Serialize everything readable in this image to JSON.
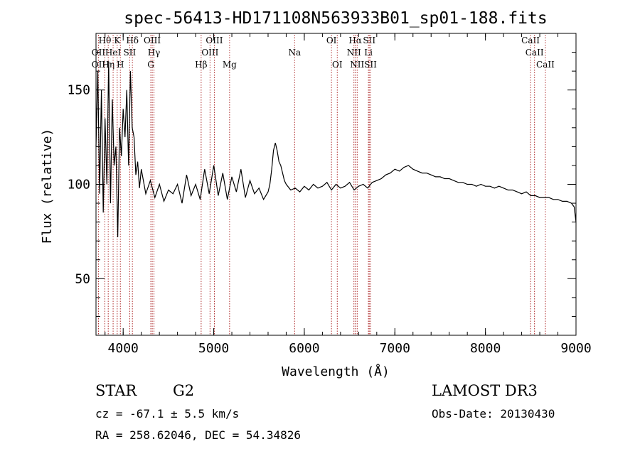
{
  "chart_data": {
    "type": "line",
    "title": "spec-56413-HD171108N563933B01_sp01-188.fits",
    "xlabel": "Wavelength (Å)",
    "ylabel": "Flux (relative)",
    "xlim": [
      3700,
      9000
    ],
    "ylim": [
      20,
      180
    ],
    "xticks": [
      4000,
      5000,
      6000,
      7000,
      8000,
      9000
    ],
    "yticks": [
      50,
      100,
      150
    ],
    "grid": false,
    "legend": "none",
    "line_color": "#000000",
    "marker_color": "#b03030",
    "spectrum": {
      "x": [
        3700,
        3720,
        3740,
        3760,
        3780,
        3800,
        3820,
        3840,
        3860,
        3880,
        3900,
        3920,
        3940,
        3960,
        3980,
        4000,
        4020,
        4040,
        4060,
        4080,
        4100,
        4120,
        4140,
        4160,
        4180,
        4200,
        4250,
        4300,
        4350,
        4400,
        4450,
        4500,
        4550,
        4600,
        4650,
        4700,
        4750,
        4800,
        4850,
        4900,
        4950,
        5000,
        5050,
        5100,
        5150,
        5200,
        5250,
        5300,
        5350,
        5400,
        5450,
        5500,
        5550,
        5600,
        5620,
        5640,
        5660,
        5680,
        5700,
        5720,
        5740,
        5760,
        5780,
        5800,
        5850,
        5900,
        5950,
        6000,
        6050,
        6100,
        6150,
        6200,
        6250,
        6300,
        6350,
        6400,
        6450,
        6500,
        6550,
        6600,
        6650,
        6700,
        6750,
        6800,
        6850,
        6900,
        6950,
        7000,
        7050,
        7100,
        7150,
        7200,
        7250,
        7300,
        7350,
        7400,
        7450,
        7500,
        7550,
        7600,
        7650,
        7700,
        7750,
        7800,
        7850,
        7900,
        7950,
        8000,
        8050,
        8100,
        8150,
        8200,
        8250,
        8300,
        8350,
        8400,
        8450,
        8500,
        8550,
        8600,
        8650,
        8700,
        8750,
        8800,
        8850,
        8900,
        8950,
        8980,
        9000
      ],
      "y": [
        120,
        160,
        95,
        150,
        85,
        135,
        100,
        165,
        90,
        145,
        110,
        120,
        72,
        130,
        115,
        140,
        125,
        150,
        110,
        160,
        130,
        125,
        105,
        112,
        98,
        108,
        95,
        102,
        93,
        100,
        91,
        97,
        95,
        100,
        90,
        105,
        94,
        100,
        92,
        108,
        95,
        110,
        94,
        106,
        92,
        104,
        96,
        108,
        93,
        102,
        95,
        98,
        92,
        96,
        100,
        108,
        118,
        122,
        118,
        112,
        110,
        106,
        102,
        100,
        97,
        98,
        96,
        99,
        97,
        100,
        98,
        99,
        101,
        97,
        100,
        98,
        99,
        101,
        97,
        99,
        100,
        98,
        101,
        102,
        103,
        105,
        106,
        108,
        107,
        109,
        110,
        108,
        107,
        106,
        106,
        105,
        104,
        104,
        103,
        103,
        102,
        101,
        101,
        100,
        100,
        99,
        100,
        99,
        99,
        98,
        99,
        98,
        97,
        97,
        96,
        95,
        96,
        94,
        94,
        93,
        93,
        93,
        92,
        92,
        91,
        91,
        90,
        88,
        80
      ]
    },
    "line_markers": [
      {
        "label": "OII",
        "x": 3727,
        "row": 2
      },
      {
        "label": "OII",
        "x": 3727,
        "row": 3
      },
      {
        "label": "Hθ",
        "x": 3798,
        "row": 1
      },
      {
        "label": "Hη",
        "x": 3835,
        "row": 3
      },
      {
        "label": "HeI",
        "x": 3889,
        "row": 2
      },
      {
        "label": "K",
        "x": 3934,
        "row": 1
      },
      {
        "label": "H",
        "x": 3969,
        "row": 3
      },
      {
        "label": "SII",
        "x": 4072,
        "row": 2
      },
      {
        "label": "Hδ",
        "x": 4102,
        "row": 1
      },
      {
        "label": "OIII",
        "x": 4321,
        "row": 1
      },
      {
        "label": "Hγ",
        "x": 4340,
        "row": 2
      },
      {
        "label": "G",
        "x": 4305,
        "row": 3
      },
      {
        "label": "Hβ",
        "x": 4861,
        "row": 3
      },
      {
        "label": "OIII",
        "x": 5007,
        "row": 1
      },
      {
        "label": "OIII",
        "x": 4959,
        "row": 2
      },
      {
        "label": "Mg",
        "x": 5175,
        "row": 3
      },
      {
        "label": "Na",
        "x": 5893,
        "row": 2
      },
      {
        "label": "OI",
        "x": 6300,
        "row": 1
      },
      {
        "label": "OI",
        "x": 6364,
        "row": 3
      },
      {
        "label": "Hα",
        "x": 6563,
        "row": 1
      },
      {
        "label": "NII",
        "x": 6548,
        "row": 2
      },
      {
        "label": "NII",
        "x": 6584,
        "row": 3
      },
      {
        "label": "SII",
        "x": 6717,
        "row": 1
      },
      {
        "label": "Li",
        "x": 6708,
        "row": 2
      },
      {
        "label": "SII",
        "x": 6731,
        "row": 3
      },
      {
        "label": "CaII",
        "x": 8498,
        "row": 1
      },
      {
        "label": "CaII",
        "x": 8542,
        "row": 2
      },
      {
        "label": "CaII",
        "x": 8662,
        "row": 3
      }
    ]
  },
  "info": {
    "object_class": "STAR",
    "subclass": "G2",
    "survey": "LAMOST DR3",
    "cz": "cz = -67.1 ± 5.5 km/s",
    "obs_date": "Obs-Date: 20130430",
    "coords": "RA = 258.62046, DEC =  54.34826"
  }
}
